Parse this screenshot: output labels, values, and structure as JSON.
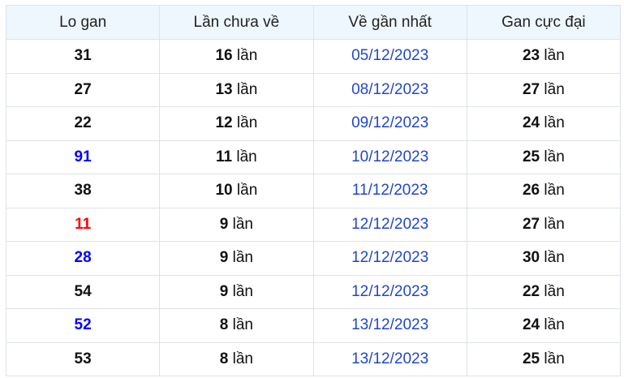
{
  "headers": [
    "Lo gan",
    "Lần chưa về",
    "Về gần nhất",
    "Gan cực đại"
  ],
  "unit": "lần",
  "colors": {
    "default": "#111111",
    "blue": "#0000ff",
    "red": "#ff0000",
    "date": "#2147c9"
  },
  "rows": [
    {
      "number": "31",
      "color": "#111111",
      "missed": "16",
      "last": "05/12/2023",
      "max": "23"
    },
    {
      "number": "27",
      "color": "#111111",
      "missed": "13",
      "last": "08/12/2023",
      "max": "27"
    },
    {
      "number": "22",
      "color": "#111111",
      "missed": "12",
      "last": "09/12/2023",
      "max": "24"
    },
    {
      "number": "91",
      "color": "#0000ff",
      "missed": "11",
      "last": "10/12/2023",
      "max": "25"
    },
    {
      "number": "38",
      "color": "#111111",
      "missed": "10",
      "last": "11/12/2023",
      "max": "26"
    },
    {
      "number": "11",
      "color": "#ff0000",
      "missed": "9",
      "last": "12/12/2023",
      "max": "27"
    },
    {
      "number": "28",
      "color": "#0000ff",
      "missed": "9",
      "last": "12/12/2023",
      "max": "30"
    },
    {
      "number": "54",
      "color": "#111111",
      "missed": "9",
      "last": "12/12/2023",
      "max": "22"
    },
    {
      "number": "52",
      "color": "#0000ff",
      "missed": "8",
      "last": "13/12/2023",
      "max": "24"
    },
    {
      "number": "53",
      "color": "#111111",
      "missed": "8",
      "last": "13/12/2023",
      "max": "25"
    }
  ]
}
